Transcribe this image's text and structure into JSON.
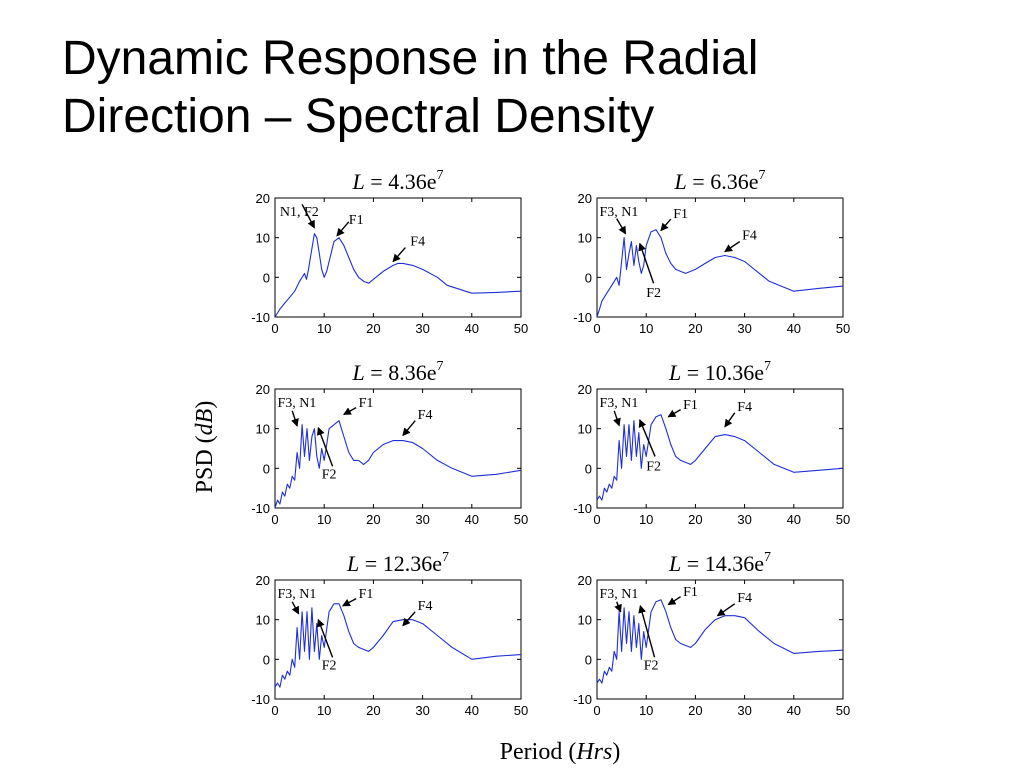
{
  "slide": {
    "title_line1": "Dynamic Response in the Radial",
    "title_line2": "Direction – Spectral Density"
  },
  "chart_data": {
    "type": "line",
    "xlabel_main": "Period (",
    "xlabel_unit": "Hrs",
    "ylabel_main": "PSD (",
    "ylabel_unit": "dB",
    "xlim": [
      0,
      50
    ],
    "ylim": [
      -10,
      20
    ],
    "xticks": [
      0,
      10,
      20,
      30,
      40,
      50
    ],
    "yticks": [
      -10,
      0,
      10,
      20
    ],
    "grid": false,
    "line_color": "#1f2fd6",
    "panels": [
      {
        "title": "L = 4.36e7",
        "title_var": "L",
        "title_value": " = 4.36e",
        "title_exp": "7",
        "x": [
          0,
          0.5,
          1,
          2,
          3,
          4,
          5,
          6,
          6.4,
          6.8,
          7.2,
          7.6,
          8.0,
          8.5,
          9.0,
          9.5,
          10.0,
          10.5,
          11.0,
          12.0,
          13.0,
          14.0,
          15.0,
          16.0,
          17.0,
          18.0,
          19.0,
          20.0,
          22.0,
          24.0,
          25.0,
          26.0,
          28.0,
          30.0,
          33.0,
          35.0,
          40.0,
          45.0,
          50.0
        ],
        "y": [
          -10,
          -9,
          -8,
          -6.5,
          -5,
          -3.5,
          -1,
          1,
          -0.5,
          2,
          5,
          8,
          11,
          10,
          6,
          2,
          0,
          1.5,
          4,
          9,
          10,
          8,
          5,
          2,
          0,
          -1,
          -1.5,
          -0.5,
          1.5,
          3,
          3.5,
          3.5,
          3,
          2,
          0,
          -2,
          -4,
          -3.8,
          -3.5
        ],
        "annotations": [
          {
            "text": "N1, F2",
            "x": 1,
            "y": 15.5,
            "ax": 5.5,
            "ay": 18.4,
            "hx": 8,
            "hy": 12.5
          },
          {
            "text": "F1",
            "x": 15,
            "y": 13.5,
            "ax": 15,
            "ay": 14,
            "hx": 12.6,
            "hy": 10.5
          },
          {
            "text": "F4",
            "x": 27.5,
            "y": 8,
            "ax": 26.5,
            "ay": 7.5,
            "hx": 24,
            "hy": 4
          }
        ]
      },
      {
        "title": "L = 6.36e7",
        "title_var": "L",
        "title_value": " = 6.36e",
        "title_exp": "7",
        "x": [
          0,
          0.5,
          1,
          2,
          3,
          4,
          4.5,
          5.0,
          5.5,
          6.0,
          6.5,
          7.0,
          7.5,
          8.0,
          8.5,
          9.0,
          9.5,
          10.0,
          11.0,
          12.0,
          13.0,
          14.0,
          15.0,
          16.0,
          18.0,
          20.0,
          22.0,
          24.0,
          26.0,
          28.0,
          30.0,
          33.0,
          35.0,
          40.0,
          45.0,
          50.0
        ],
        "y": [
          -10,
          -8,
          -6,
          -4,
          -2,
          0,
          -2,
          4,
          10,
          2,
          6,
          9,
          3,
          8,
          4,
          1,
          3,
          8,
          11.5,
          12,
          10,
          6,
          3.5,
          2,
          1,
          2,
          3.5,
          5,
          5.5,
          5,
          4,
          1,
          -1,
          -3.5,
          -2.8,
          -2.2
        ],
        "annotations": [
          {
            "text": "F3, N1",
            "x": 0.5,
            "y": 15.5,
            "ax": 4,
            "ay": 14.8,
            "hx": 5.8,
            "hy": 11
          },
          {
            "text": "F1",
            "x": 15.5,
            "y": 15,
            "ax": 15,
            "ay": 14.7,
            "hx": 13,
            "hy": 11.8
          },
          {
            "text": "F4",
            "x": 29.5,
            "y": 9.5,
            "ax": 29,
            "ay": 9,
            "hx": 26,
            "hy": 6.5
          },
          {
            "text": "F2",
            "x": 10,
            "y": -5,
            "ax": 11.5,
            "ay": -1.5,
            "hx": 8.7,
            "hy": 8.5
          }
        ]
      },
      {
        "title": "L = 8.36e7",
        "title_var": "L",
        "title_value": " = 8.36e",
        "title_exp": "7",
        "x": [
          0,
          0.5,
          1,
          1.5,
          2,
          2.5,
          3,
          3.5,
          4,
          4.5,
          5,
          5.5,
          6,
          6.5,
          7,
          7.5,
          8,
          8.5,
          9,
          9.5,
          10,
          10.5,
          11,
          12,
          13,
          14,
          15,
          16,
          17,
          18,
          19,
          20,
          22,
          24,
          26,
          28,
          30,
          33,
          36,
          40,
          45,
          50
        ],
        "y": [
          -10,
          -8,
          -9,
          -6,
          -7,
          -4,
          -5,
          -2,
          -3,
          4,
          0,
          11,
          3,
          10,
          2,
          8,
          10,
          3,
          0,
          5,
          2,
          6,
          10,
          11,
          12,
          8,
          4,
          2,
          2,
          1,
          2,
          4,
          6,
          7,
          7,
          6.5,
          5,
          2,
          0,
          -2,
          -1.5,
          -0.5
        ],
        "annotations": [
          {
            "text": "F3, N1",
            "x": 0.5,
            "y": 15.5,
            "ax": 3.5,
            "ay": 14.5,
            "hx": 4.5,
            "hy": 10.7
          },
          {
            "text": "F1",
            "x": 17,
            "y": 15.5,
            "ax": 16.5,
            "ay": 15.3,
            "hx": 14,
            "hy": 13.6
          },
          {
            "text": "F4",
            "x": 29,
            "y": 12.5,
            "ax": 28.5,
            "ay": 12,
            "hx": 26,
            "hy": 8.3
          },
          {
            "text": "F2",
            "x": 9.5,
            "y": -2.5,
            "ax": 11.7,
            "ay": 0.5,
            "hx": 8.8,
            "hy": 10.2
          }
        ]
      },
      {
        "title": "L = 10.36e7",
        "title_var": "L",
        "title_value": " = 10.36e",
        "title_exp": "7",
        "x": [
          0,
          0.5,
          1,
          1.5,
          2,
          2.5,
          3,
          3.5,
          4,
          4.5,
          5,
          5.5,
          6,
          6.5,
          7,
          7.5,
          8,
          8.5,
          9,
          9.5,
          10,
          11,
          12,
          13,
          14,
          15,
          16,
          17,
          18,
          19,
          20,
          22,
          24,
          26,
          28,
          30,
          33,
          36,
          40,
          45,
          50
        ],
        "y": [
          -8,
          -7,
          -8,
          -5,
          -6,
          -4,
          -5,
          -2,
          -3,
          7,
          0,
          11,
          3,
          11,
          2,
          12,
          3,
          9,
          0,
          6,
          3,
          11,
          13,
          13.5,
          10,
          6,
          3,
          2,
          1.5,
          1,
          2,
          5,
          8,
          8.5,
          8,
          7,
          4,
          1,
          -1,
          -0.5,
          0
        ],
        "annotations": [
          {
            "text": "F3, N1",
            "x": 0.5,
            "y": 15.5,
            "ax": 3.5,
            "ay": 14.5,
            "hx": 4.5,
            "hy": 10.8
          },
          {
            "text": "F1",
            "x": 17.5,
            "y": 15,
            "ax": 17,
            "ay": 14.8,
            "hx": 14.5,
            "hy": 13
          },
          {
            "text": "F4",
            "x": 28.5,
            "y": 14.5,
            "ax": 28,
            "ay": 14,
            "hx": 26,
            "hy": 10.5
          },
          {
            "text": "F2",
            "x": 10,
            "y": -0.5,
            "ax": 11.8,
            "ay": 3,
            "hx": 8.7,
            "hy": 12.2
          }
        ]
      },
      {
        "title": "L = 12.36e7",
        "title_var": "L",
        "title_value": " = 12.36e",
        "title_exp": "7",
        "x": [
          0,
          0.5,
          1,
          1.5,
          2,
          2.5,
          3,
          3.5,
          4,
          4.5,
          5,
          5.5,
          6,
          6.5,
          7,
          7.5,
          8,
          8.5,
          9,
          9.5,
          10,
          11,
          12,
          13,
          14,
          15,
          16,
          17,
          18,
          19,
          20,
          22,
          24,
          26,
          28,
          30,
          33,
          36,
          40,
          45,
          50
        ],
        "y": [
          -7,
          -6,
          -7,
          -4,
          -5,
          -3,
          -4,
          0,
          -2,
          8,
          0,
          12,
          2,
          12,
          0,
          13,
          2,
          9,
          0,
          6,
          3,
          12,
          14,
          14,
          11,
          7,
          4,
          3,
          2.5,
          2,
          3,
          6,
          9.5,
          10,
          10,
          9,
          6,
          3,
          0,
          0.8,
          1.2
        ],
        "annotations": [
          {
            "text": "F3, N1",
            "x": 0.5,
            "y": 15.5,
            "ax": 3.5,
            "ay": 14.5,
            "hx": 4.8,
            "hy": 11.5
          },
          {
            "text": "F1",
            "x": 17,
            "y": 15.5,
            "ax": 16.5,
            "ay": 15.3,
            "hx": 13.8,
            "hy": 13.5
          },
          {
            "text": "F4",
            "x": 29,
            "y": 12.5,
            "ax": 28.5,
            "ay": 12,
            "hx": 26,
            "hy": 8.5
          },
          {
            "text": "F2",
            "x": 9.5,
            "y": -2.5,
            "ax": 11.7,
            "ay": 0.5,
            "hx": 8.8,
            "hy": 10
          }
        ]
      },
      {
        "title": "L = 14.36e7",
        "title_var": "L",
        "title_value": " = 14.36e",
        "title_exp": "7",
        "x": [
          0,
          0.5,
          1,
          1.5,
          2,
          2.5,
          3,
          3.5,
          4,
          4.5,
          5,
          5.5,
          6,
          6.5,
          7,
          7.5,
          8,
          8.5,
          9,
          9.5,
          10,
          11,
          12,
          13,
          14,
          15,
          16,
          17,
          18,
          19,
          20,
          22,
          24,
          26,
          28,
          30,
          33,
          36,
          40,
          45,
          50
        ],
        "y": [
          -6,
          -5,
          -6,
          -3,
          -4,
          -2,
          -3,
          2,
          0,
          12,
          2,
          13,
          4,
          12,
          2,
          11,
          3,
          9,
          0,
          7,
          3,
          12,
          14.5,
          15,
          12,
          8,
          5,
          4,
          3.5,
          3,
          4,
          7.5,
          10,
          11,
          11,
          10.5,
          7,
          4,
          1.5,
          2,
          2.3
        ],
        "annotations": [
          {
            "text": "F3, N1",
            "x": 0.5,
            "y": 15.5,
            "ax": 4,
            "ay": 14.5,
            "hx": 4.8,
            "hy": 12
          },
          {
            "text": "F1",
            "x": 17.5,
            "y": 16,
            "ax": 17,
            "ay": 15.8,
            "hx": 14.5,
            "hy": 13.8
          },
          {
            "text": "F4",
            "x": 28.5,
            "y": 14.5,
            "ax": 28,
            "ay": 14,
            "hx": 24.5,
            "hy": 11
          },
          {
            "text": "F2",
            "x": 9.5,
            "y": -2.5,
            "ax": 11.7,
            "ay": 0.5,
            "hx": 8.8,
            "hy": 13.5
          }
        ]
      }
    ]
  }
}
